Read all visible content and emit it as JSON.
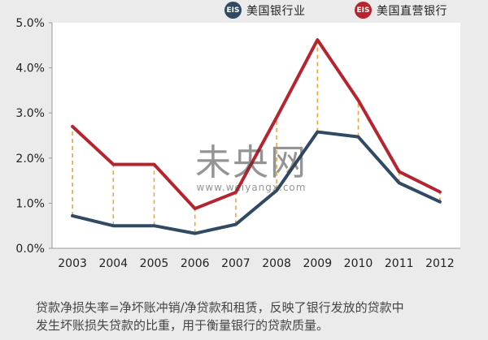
{
  "legend": {
    "us_banks": {
      "logo": "EIS",
      "label": "美国银行业",
      "color": "#304a63"
    },
    "direct_banks": {
      "logo": "EIS",
      "label": "美国直营银行",
      "color": "#b5242f"
    }
  },
  "watermark": {
    "cn": "未央网",
    "url": "www.weiyangx.com"
  },
  "footnote": {
    "line1": "贷款净损失率=净坏账冲销/净贷款和租赁，反映了银行发放的贷款中",
    "line2": "发生坏账损失贷款的比重，用于衡量银行的贷款质量。"
  },
  "chart_data": {
    "type": "line",
    "x": [
      "2003",
      "2004",
      "2005",
      "2006",
      "2007",
      "2008",
      "2009",
      "2010",
      "2011",
      "2012"
    ],
    "series": [
      {
        "name": "美国银行业",
        "color": "#304a63",
        "values": [
          0.72,
          0.5,
          0.5,
          0.33,
          0.53,
          1.28,
          2.58,
          2.47,
          1.45,
          1.03
        ]
      },
      {
        "name": "美国直营银行",
        "color": "#b5242f",
        "values": [
          2.7,
          1.86,
          1.86,
          0.88,
          1.24,
          2.9,
          4.62,
          3.28,
          1.7,
          1.25
        ]
      }
    ],
    "ylim": [
      0,
      5
    ],
    "yticks": [
      0,
      1,
      2,
      3,
      4,
      5
    ],
    "yticklabels": [
      "0.0%",
      "1.0%",
      "2.0%",
      "3.0%",
      "4.0%",
      "5.0%"
    ],
    "connector_color": "#f2a43a",
    "grid": false,
    "legend_position": "top-right"
  }
}
